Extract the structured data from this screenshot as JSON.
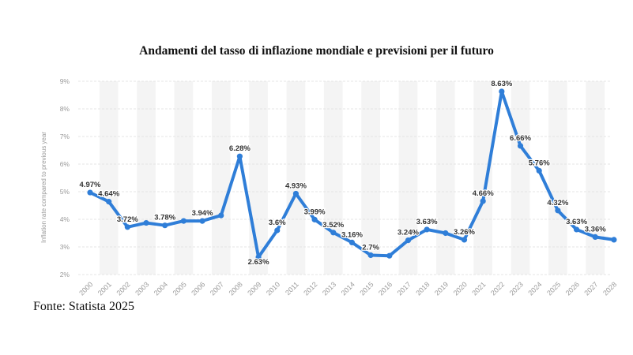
{
  "chart_data": {
    "type": "line",
    "title": "Andamenti del tasso di inflazione mondiale e previsioni per il futuro",
    "ylabel": "Inflation rate compared to previous year",
    "xlabel": "",
    "ylim": [
      2,
      9
    ],
    "yticks": [
      "2%",
      "3%",
      "4%",
      "5%",
      "6%",
      "7%",
      "8%",
      "9%"
    ],
    "grid": true,
    "legend": "none",
    "colors": {
      "line": "#2f7ed8",
      "grid": "#e4e4e4",
      "band": "#f4f4f4",
      "tick_label": "#9a9a9a",
      "data_label": "#333333"
    },
    "categories": [
      "2000",
      "2001",
      "2002",
      "2003",
      "2004",
      "2005",
      "2006",
      "2007",
      "2008",
      "2009",
      "2010",
      "2011",
      "2012",
      "2013",
      "2014",
      "2015",
      "2016",
      "2017",
      "2018",
      "2019",
      "2020",
      "2021",
      "2022",
      "2023",
      "2024",
      "2025",
      "2026",
      "2027",
      "2028"
    ],
    "series": [
      {
        "values": [
          4.97,
          4.64,
          3.72,
          3.87,
          3.78,
          3.94,
          3.94,
          4.14,
          6.28,
          2.63,
          3.6,
          4.93,
          3.99,
          3.52,
          3.16,
          2.7,
          2.68,
          3.24,
          3.63,
          3.5,
          3.26,
          4.66,
          8.63,
          6.66,
          5.76,
          4.32,
          3.63,
          3.36,
          3.26
        ],
        "labels": [
          "4.97%",
          "4.64%",
          "3.72%",
          "",
          "3.78%",
          "",
          "3.94%",
          "",
          "6.28%",
          "2.63%",
          "3.6%",
          "4.93%",
          "3.99%",
          "3.52%",
          "3.16%",
          "2.7%",
          "",
          "3.24%",
          "3.63%",
          "",
          "3.26%",
          "4.66%",
          "8.63%",
          "6.66%",
          "5.76%",
          "4.32%",
          "3.63%",
          "3.36%",
          ""
        ]
      }
    ]
  },
  "footer": {
    "source": "Fonte: Statista 2025"
  }
}
